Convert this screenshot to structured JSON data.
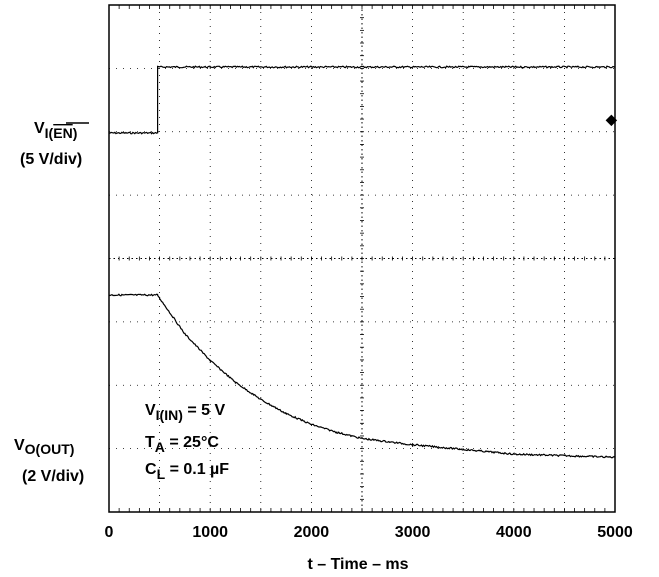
{
  "chart_data": {
    "type": "line",
    "title": "",
    "xlabel": "t – Time – ms",
    "x_ticks": [
      0,
      1000,
      2000,
      3000,
      4000,
      5000
    ],
    "xlim": [
      0,
      5000
    ],
    "grid": true,
    "series": [
      {
        "channel_label": "V",
        "channel_sub": "I(",
        "channel_sub_over": "EN",
        "channel_sub_close": ")",
        "scale": "(5 V/div)",
        "points": [
          [
            0,
            0
          ],
          [
            480,
            0
          ],
          [
            480,
            1
          ],
          [
            1000,
            1
          ],
          [
            2000,
            1
          ],
          [
            3000,
            1
          ],
          [
            4000,
            1
          ],
          [
            5000,
            1
          ]
        ]
      },
      {
        "channel_label": "V",
        "channel_sub": "O(OUT)",
        "scale": "(2 V/div)",
        "points": [
          [
            0,
            0
          ],
          [
            480,
            0
          ],
          [
            500,
            0.02
          ],
          [
            750,
            0.25
          ],
          [
            1000,
            0.42
          ],
          [
            1250,
            0.56
          ],
          [
            1500,
            0.67
          ],
          [
            1750,
            0.76
          ],
          [
            2000,
            0.83
          ],
          [
            2250,
            0.88
          ],
          [
            2500,
            0.92
          ],
          [
            3000,
            0.96
          ],
          [
            3500,
            0.99
          ],
          [
            4000,
            1.02
          ],
          [
            4500,
            1.03
          ],
          [
            5000,
            1.04
          ]
        ]
      }
    ],
    "annotations": [
      {
        "main": "V",
        "sub": "I(IN)",
        "rest": " = 5 V"
      },
      {
        "main": "T",
        "sub": "A",
        "rest": " = 25°C"
      },
      {
        "main": "C",
        "sub": "L",
        "rest": " = 0.1 µF"
      }
    ],
    "trigger_marker": "◆"
  }
}
